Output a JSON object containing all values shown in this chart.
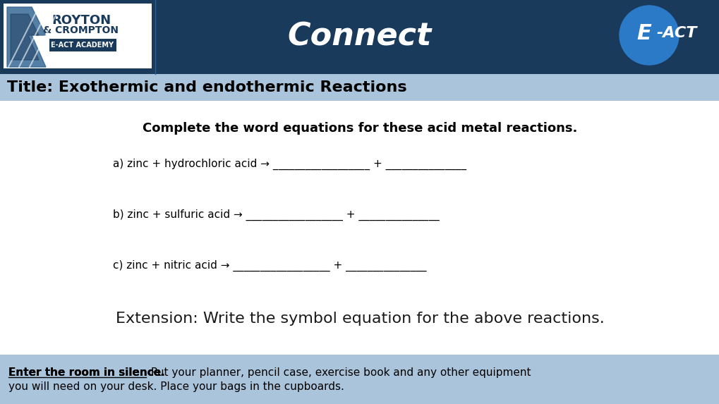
{
  "header_bg": "#1a3a5c",
  "header_text": "Connect",
  "header_text_color": "#ffffff",
  "title_bar_bg": "#aac4dc",
  "title_text": "Title: Exothermic and endothermic Reactions",
  "title_text_color": "#000000",
  "body_bg": "#ffffff",
  "footer_bg": "#aac4dc",
  "footer_bold_text": "Enter the room in silence.",
  "footer_normal_text": " Put your planner, pencil case, exercise book and any other equipment\nyou will need on your desk. Place your bags in the cupboards.",
  "instruction_text": "Complete the word equations for these acid metal reactions.",
  "eq_a": "a) zinc + hydrochloric acid → __________________ + _______________",
  "eq_b": "b) zinc + sulfuric acid → __________________ + _______________",
  "eq_c": "c) zinc + nitric acid → __________________ + _______________",
  "extension_text": "Extension: Write the symbol equation for the above reactions."
}
